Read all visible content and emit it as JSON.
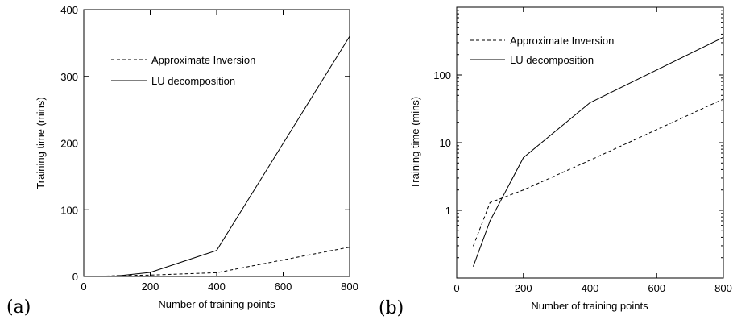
{
  "chart_data": [
    {
      "type": "line",
      "panel_label": "(a)",
      "xlabel": "Number of training points",
      "ylabel": "Training time (mins)",
      "xlim": [
        0,
        800
      ],
      "ylim": [
        0,
        400
      ],
      "yscale": "linear",
      "x_ticks": [
        "0",
        "200",
        "400",
        "600",
        "800"
      ],
      "y_ticks": [
        "0",
        "100",
        "200",
        "300",
        "400"
      ],
      "grid": false,
      "legend_position": "top-center",
      "series": [
        {
          "name": "Approximate Inversion",
          "style": "dashed",
          "x": [
            50,
            100,
            200,
            400,
            800
          ],
          "y": [
            0.3,
            1.3,
            2,
            5.5,
            44
          ]
        },
        {
          "name": "LU decomposition",
          "style": "solid",
          "x": [
            50,
            100,
            200,
            400,
            800
          ],
          "y": [
            0.15,
            0.7,
            6,
            39,
            360
          ]
        }
      ]
    },
    {
      "type": "line",
      "panel_label": "(b)",
      "xlabel": "Number of training points",
      "ylabel": "Training time (mins)",
      "xlim": [
        0,
        800
      ],
      "ylim": [
        0.1,
        1000
      ],
      "yscale": "log",
      "x_ticks": [
        "0",
        "200",
        "400",
        "600",
        "800"
      ],
      "y_ticks": [
        "1",
        "10",
        "100"
      ],
      "grid": false,
      "legend_position": "top-left",
      "series": [
        {
          "name": "Approximate Inversion",
          "style": "dashed",
          "x": [
            50,
            100,
            200,
            400,
            800
          ],
          "y": [
            0.3,
            1.3,
            2,
            5.5,
            44
          ]
        },
        {
          "name": "LU decomposition",
          "style": "solid",
          "x": [
            50,
            100,
            200,
            400,
            800
          ],
          "y": [
            0.15,
            0.7,
            6,
            39,
            360
          ]
        }
      ]
    }
  ]
}
